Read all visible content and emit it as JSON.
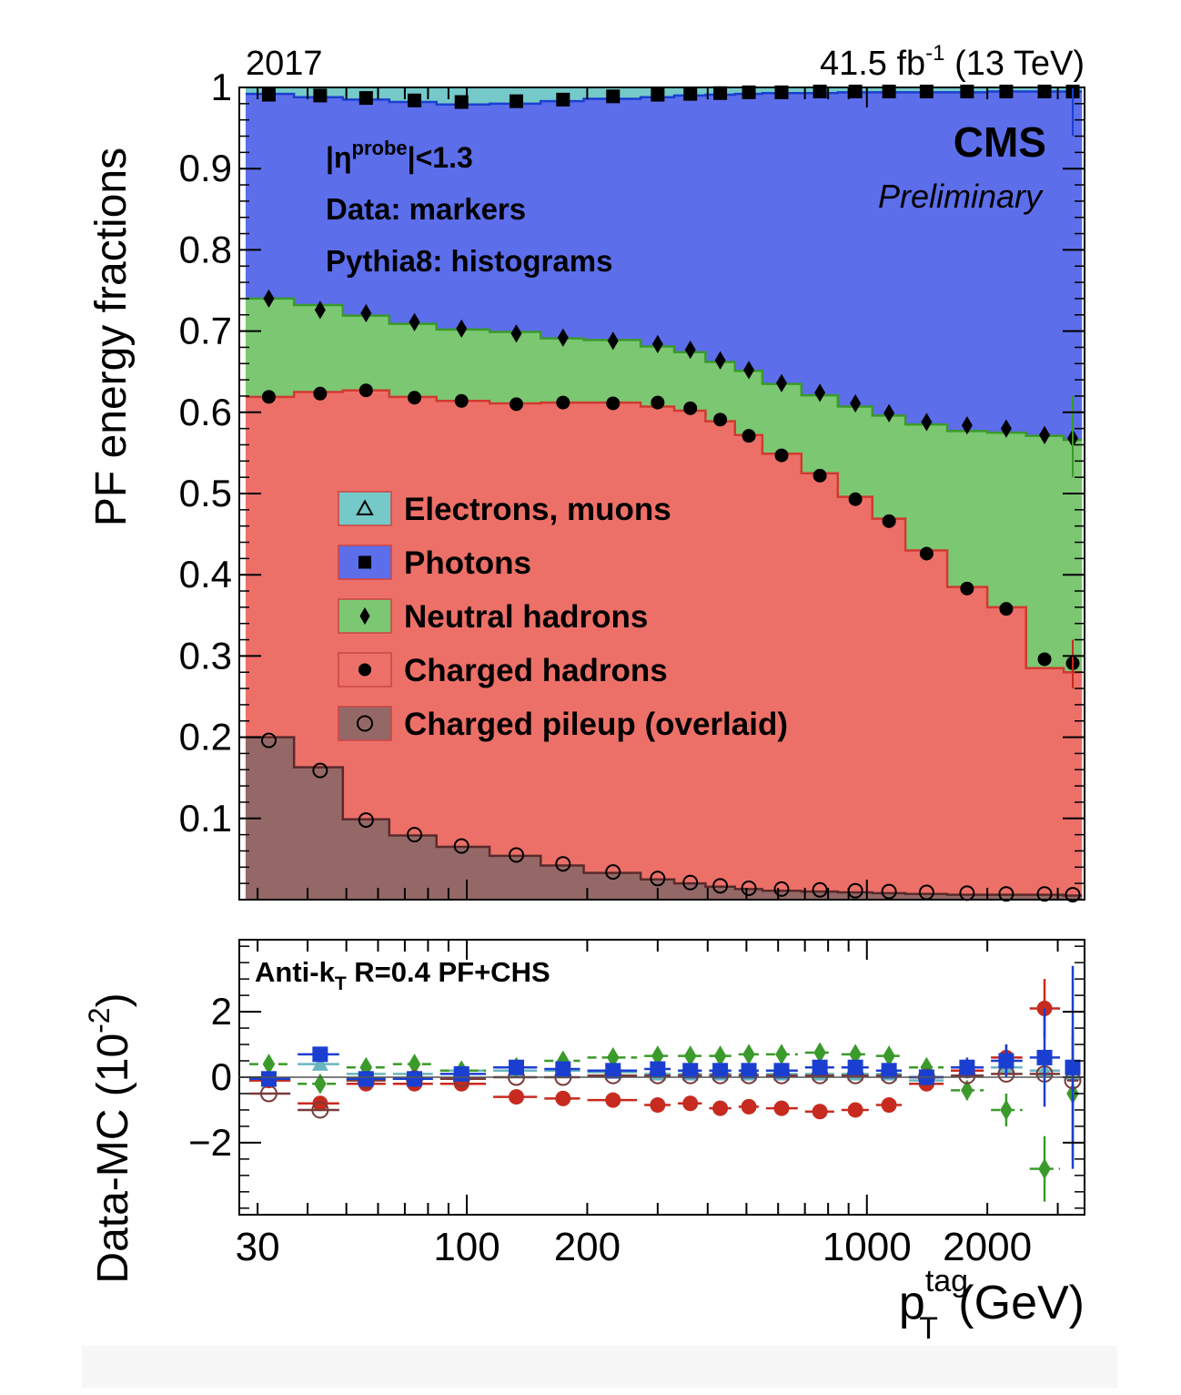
{
  "header": {
    "year_label": "2017",
    "lumi_value": "41.5 fb",
    "lumi_exp": "-1",
    "lumi_energy": " (13 TeV)"
  },
  "annotations": {
    "experiment": "CMS",
    "status": "Preliminary",
    "eta_prefix": "|η",
    "eta_sup": "probe",
    "eta_suffix": "|<1.3",
    "data_note": "Data: markers",
    "mc_note": "Pythia8: histograms",
    "jet_prefix": "Anti-k",
    "jet_sub": "T",
    "jet_suffix": " R=0.4 PF+CHS"
  },
  "axes": {
    "top_ylabel": "PF energy fractions",
    "bottom_ylabel_main": "Data-MC (10",
    "bottom_ylabel_exp": "-2",
    "bottom_ylabel_close": ")",
    "xlabel_base": "p",
    "xlabel_sup": "tag",
    "xlabel_sub": "T",
    "xlabel_unit": " (GeV)"
  },
  "chart_data": [
    {
      "type": "area",
      "panel": "top",
      "x_scale": "log",
      "xlim": [
        27,
        3500
      ],
      "ylim": [
        0,
        1
      ],
      "yticks": [
        "0.1",
        "0.2",
        "0.3",
        "0.4",
        "0.5",
        "0.6",
        "0.7",
        "0.8",
        "0.9",
        "1"
      ],
      "bins": [
        [
          28,
          37
        ],
        [
          37,
          49
        ],
        [
          49,
          64
        ],
        [
          64,
          84
        ],
        [
          84,
          114
        ],
        [
          114,
          153
        ],
        [
          153,
          196
        ],
        [
          196,
          272
        ],
        [
          272,
          330
        ],
        [
          330,
          395
        ],
        [
          395,
          468
        ],
        [
          468,
          548
        ],
        [
          548,
          686
        ],
        [
          686,
          846
        ],
        [
          846,
          1032
        ],
        [
          1032,
          1248
        ],
        [
          1248,
          1588
        ],
        [
          1588,
          2000
        ],
        [
          2000,
          2500
        ],
        [
          2500,
          3103
        ],
        [
          3103,
          3450
        ]
      ],
      "x": [
        32,
        43,
        56,
        74,
        97,
        133,
        174,
        232,
        300,
        362,
        430,
        507,
        612,
        763,
        936,
        1136,
        1410,
        1780,
        2230,
        2780,
        3270
      ],
      "stack_series": [
        {
          "name": "Charged hadrons",
          "mc_values": [
            0.619,
            0.625,
            0.627,
            0.619,
            0.614,
            0.611,
            0.612,
            0.612,
            0.607,
            0.602,
            0.589,
            0.572,
            0.549,
            0.525,
            0.496,
            0.469,
            0.43,
            0.385,
            0.36,
            0.285,
            0.28
          ],
          "data_values": [
            0.619,
            0.623,
            0.627,
            0.618,
            0.614,
            0.61,
            0.612,
            0.611,
            0.612,
            0.605,
            0.591,
            0.571,
            0.547,
            0.522,
            0.493,
            0.466,
            0.426,
            0.383,
            0.358,
            0.296,
            0.291
          ]
        },
        {
          "name": "Neutral hadrons",
          "mc_values": [
            0.74,
            0.732,
            0.719,
            0.709,
            0.702,
            0.699,
            0.691,
            0.689,
            0.681,
            0.674,
            0.662,
            0.651,
            0.635,
            0.621,
            0.607,
            0.596,
            0.585,
            0.577,
            0.575,
            0.571,
            0.566
          ],
          "data_values": [
            0.74,
            0.726,
            0.722,
            0.711,
            0.703,
            0.697,
            0.692,
            0.688,
            0.684,
            0.677,
            0.664,
            0.652,
            0.636,
            0.624,
            0.611,
            0.599,
            0.588,
            0.584,
            0.58,
            0.572,
            0.568
          ]
        },
        {
          "name": "Photons",
          "mc_values": [
            0.992,
            0.988,
            0.985,
            0.982,
            0.979,
            0.98,
            0.983,
            0.986,
            0.988,
            0.99,
            0.991,
            0.992,
            0.993,
            0.993,
            0.994,
            0.994,
            0.994,
            0.994,
            0.995,
            0.995,
            0.995
          ],
          "data_values": [
            0.991,
            0.99,
            0.987,
            0.984,
            0.982,
            0.983,
            0.985,
            0.989,
            0.991,
            0.992,
            0.993,
            0.994,
            0.994,
            0.995,
            0.995,
            0.995,
            0.995,
            0.995,
            0.995,
            0.995,
            0.995
          ]
        },
        {
          "name": "Electrons, muons",
          "mc_values": [
            1,
            1,
            1,
            1,
            1,
            1,
            1,
            1,
            1,
            1,
            1,
            1,
            1,
            1,
            1,
            1,
            1,
            1,
            1,
            1,
            1
          ],
          "data_values": [
            1,
            1,
            1,
            1,
            1,
            1,
            1,
            1,
            1,
            1,
            1,
            1,
            1,
            1,
            1,
            1,
            1,
            1,
            1,
            1,
            1
          ]
        }
      ],
      "overlay_series": {
        "name": "Charged pileup (overlaid)",
        "mc_values": [
          0.2,
          0.163,
          0.099,
          0.079,
          0.065,
          0.054,
          0.042,
          0.033,
          0.025,
          0.02,
          0.016,
          0.013,
          0.011,
          0.01,
          0.009,
          0.008,
          0.007,
          0.006,
          0.006,
          0.006,
          0.005
        ],
        "data_values": [
          0.196,
          0.159,
          0.098,
          0.08,
          0.066,
          0.055,
          0.044,
          0.034,
          0.026,
          0.021,
          0.017,
          0.014,
          0.013,
          0.012,
          0.011,
          0.01,
          0.009,
          0.008,
          0.007,
          0.007,
          0.006
        ]
      },
      "legend": [
        {
          "label": "Electrons, muons",
          "marker": "triangle-open",
          "fill": "#75c9c9"
        },
        {
          "label": "Photons",
          "marker": "square",
          "fill": "#5c6eea"
        },
        {
          "label": "Neutral hadrons",
          "marker": "diamond",
          "fill": "#7cc772"
        },
        {
          "label": "Charged hadrons",
          "marker": "circle",
          "fill": "#ec7068"
        },
        {
          "label": "Charged pileup (overlaid)",
          "marker": "circle-open",
          "fill": "#956868"
        }
      ],
      "colors": {
        "electrons": "#75c9c9",
        "photons": "#5c6eea",
        "neutral": "#7cc772",
        "charged": "#ec7068",
        "pileup": "#956868"
      }
    },
    {
      "type": "scatter",
      "panel": "bottom",
      "x_scale": "log",
      "xlim": [
        27,
        3500
      ],
      "ylim": [
        -4.2,
        4.2
      ],
      "yticks": [
        "-2",
        "0",
        "2"
      ],
      "xticks": [
        "30",
        "100",
        "200",
        "1000",
        "2000"
      ],
      "series": [
        {
          "name": "Electrons, muons",
          "color": "#6ab5c0",
          "marker": "triangle",
          "y": [
            -0.1,
            0.4,
            0.1,
            0.1,
            0.2,
            0.2,
            0.2,
            0.15,
            0.1,
            0.1,
            0.1,
            0.1,
            0.1,
            0.1,
            0.1,
            0.1,
            -0.1,
            0.2,
            0.3,
            0.2,
            0.1
          ]
        },
        {
          "name": "Photons",
          "color": "#1a3fd0",
          "marker": "square",
          "y": [
            -0.05,
            0.7,
            -0.05,
            -0.05,
            0.1,
            0.3,
            0.25,
            0.2,
            0.25,
            0.2,
            0.2,
            0.2,
            0.2,
            0.3,
            0.3,
            0.2,
            0.0,
            0.3,
            0.5,
            0.6,
            0.3
          ],
          "err": [
            0.1,
            0.1,
            0.1,
            0.1,
            0.1,
            0.1,
            0.1,
            0.1,
            0.1,
            0.1,
            0.1,
            0.1,
            0.1,
            0.1,
            0.1,
            0.1,
            0.1,
            0.3,
            0.5,
            1.5,
            3.1
          ]
        },
        {
          "name": "Neutral hadrons",
          "color": "#3a9a2a",
          "marker": "diamond",
          "y": [
            0.4,
            -0.2,
            0.3,
            0.4,
            0.2,
            0.3,
            0.5,
            0.6,
            0.65,
            0.65,
            0.65,
            0.7,
            0.7,
            0.75,
            0.7,
            0.65,
            0.3,
            -0.4,
            -1.0,
            -2.8,
            -0.5
          ],
          "err": [
            0.1,
            0.1,
            0.1,
            0.1,
            0.1,
            0.1,
            0.1,
            0.1,
            0.1,
            0.1,
            0.1,
            0.1,
            0.1,
            0.1,
            0.1,
            0.1,
            0.1,
            0.3,
            0.5,
            1.0,
            2.0
          ]
        },
        {
          "name": "Charged hadrons",
          "color": "#c72a1e",
          "marker": "circle",
          "y": [
            -0.1,
            -0.8,
            -0.2,
            -0.2,
            -0.2,
            -0.6,
            -0.65,
            -0.7,
            -0.85,
            -0.8,
            -0.95,
            -0.9,
            -0.95,
            -1.05,
            -1.0,
            -0.85,
            -0.2,
            0.2,
            0.6,
            2.1,
            0.3
          ],
          "err": [
            0.1,
            0.1,
            0.1,
            0.1,
            0.1,
            0.1,
            0.1,
            0.1,
            0.1,
            0.1,
            0.1,
            0.1,
            0.1,
            0.1,
            0.1,
            0.1,
            0.1,
            0.2,
            0.4,
            0.9,
            1.0
          ]
        },
        {
          "name": "Charged pileup (overlaid)",
          "color": "#7a3a3a",
          "marker": "circle-open",
          "y": [
            -0.5,
            -1.0,
            -0.1,
            -0.05,
            -0.05,
            0.0,
            0.0,
            0.05,
            0.05,
            0.05,
            0.05,
            0.05,
            0.05,
            0.05,
            0.05,
            0.05,
            0.0,
            0.05,
            0.1,
            0.1,
            -0.1
          ]
        }
      ]
    }
  ]
}
